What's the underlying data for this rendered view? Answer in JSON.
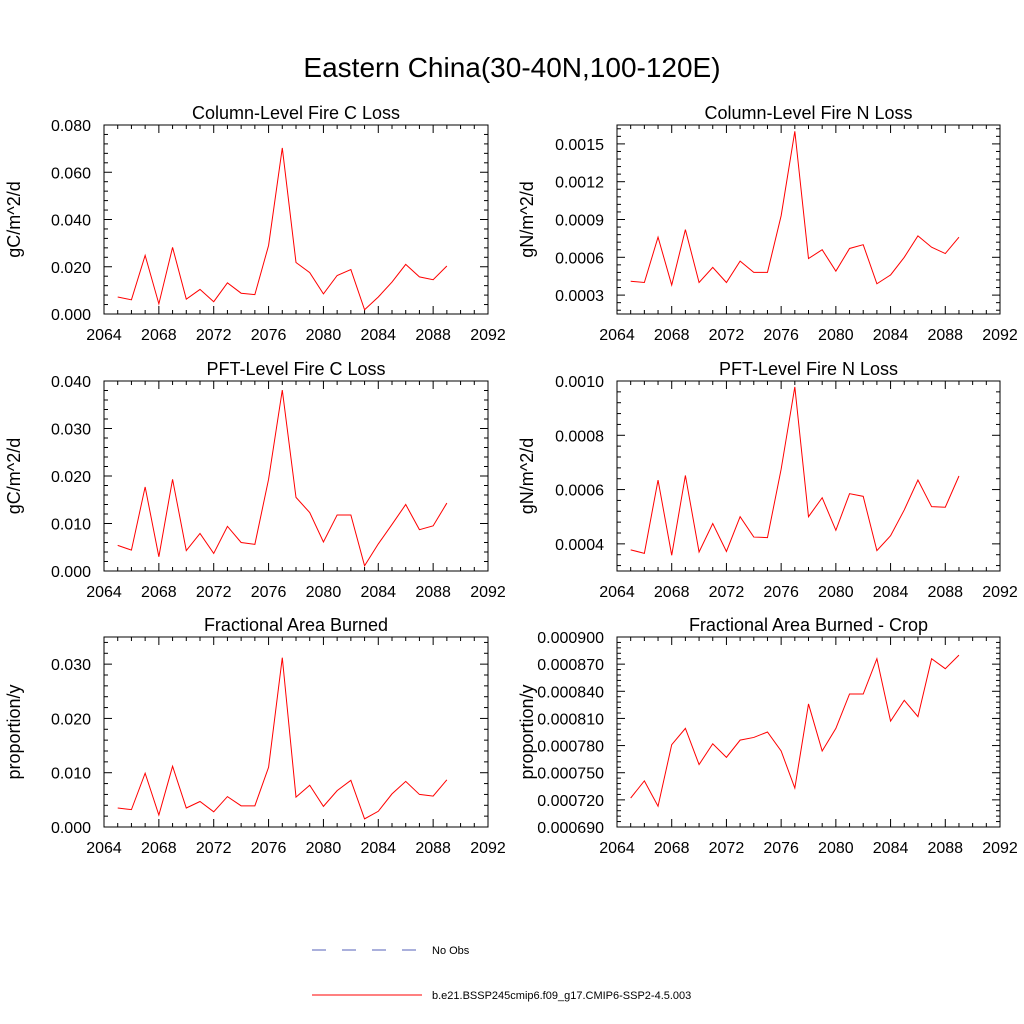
{
  "figure": {
    "title": "Eastern China(30-40N,100-120E)"
  },
  "legend": [
    {
      "name": "No Obs",
      "color": "#5560b8",
      "style": "dashed"
    },
    {
      "name": "b.e21.BSSP245cmip6.f09_g17.CMIP6-SSP2-4.5.003",
      "color": "#ff0000",
      "style": "solid"
    }
  ],
  "chart_data": [
    {
      "type": "line",
      "title": "Column-Level Fire C Loss",
      "ylabel": "gC/m^2/d",
      "xlim": [
        2064,
        2092
      ],
      "xticks": [
        2064,
        2068,
        2072,
        2076,
        2080,
        2084,
        2088,
        2092
      ],
      "xtick_labels": [
        "2064",
        "2068",
        "2072",
        "2076",
        "2080",
        "2084",
        "2088",
        "2092"
      ],
      "ylim": [
        0.0,
        0.08
      ],
      "yticks": [
        0.0,
        0.02,
        0.04,
        0.06,
        0.08
      ],
      "ytick_labels": [
        "0.000",
        "0.020",
        "0.040",
        "0.060",
        "0.080"
      ],
      "x": [
        2065,
        2066,
        2067,
        2068,
        2069,
        2070,
        2071,
        2072,
        2073,
        2074,
        2075,
        2076,
        2077,
        2078,
        2079,
        2080,
        2081,
        2082,
        2083,
        2084,
        2085,
        2086,
        2087,
        2088,
        2089
      ],
      "series": [
        {
          "color": "#ff0000",
          "values": [
            0.0072,
            0.006,
            0.0248,
            0.0043,
            0.0282,
            0.0063,
            0.0104,
            0.0052,
            0.0132,
            0.0088,
            0.0082,
            0.029,
            0.0703,
            0.0218,
            0.0175,
            0.0085,
            0.0163,
            0.0188,
            0.0018,
            0.0072,
            0.0135,
            0.021,
            0.0157,
            0.0145,
            0.0203
          ]
        }
      ]
    },
    {
      "type": "line",
      "title": "Column-Level Fire N Loss",
      "ylabel": "gN/m^2/d",
      "xlim": [
        2064,
        2092
      ],
      "xticks": [
        2064,
        2068,
        2072,
        2076,
        2080,
        2084,
        2088,
        2092
      ],
      "xtick_labels": [
        "2064",
        "2068",
        "2072",
        "2076",
        "2080",
        "2084",
        "2088",
        "2092"
      ],
      "ylim": [
        0.00015,
        0.00165
      ],
      "yticks": [
        0.0003,
        0.0006,
        0.0009,
        0.0012,
        0.0015
      ],
      "ytick_labels": [
        "0.0003",
        "0.0006",
        "0.0009",
        "0.0012",
        "0.0015"
      ],
      "x": [
        2065,
        2066,
        2067,
        2068,
        2069,
        2070,
        2071,
        2072,
        2073,
        2074,
        2075,
        2076,
        2077,
        2078,
        2079,
        2080,
        2081,
        2082,
        2083,
        2084,
        2085,
        2086,
        2087,
        2088,
        2089
      ],
      "series": [
        {
          "color": "#ff0000",
          "values": [
            0.00041,
            0.0004,
            0.00076,
            0.00038,
            0.00082,
            0.0004,
            0.00052,
            0.0004,
            0.00057,
            0.00048,
            0.00048,
            0.00093,
            0.0016,
            0.00059,
            0.00066,
            0.00049,
            0.00067,
            0.0007,
            0.00039,
            0.00046,
            0.0006,
            0.00077,
            0.00068,
            0.00063,
            0.00076
          ]
        }
      ]
    },
    {
      "type": "line",
      "title": "PFT-Level Fire C Loss",
      "ylabel": "gC/m^2/d",
      "xlim": [
        2064,
        2092
      ],
      "xticks": [
        2064,
        2068,
        2072,
        2076,
        2080,
        2084,
        2088,
        2092
      ],
      "xtick_labels": [
        "2064",
        "2068",
        "2072",
        "2076",
        "2080",
        "2084",
        "2088",
        "2092"
      ],
      "ylim": [
        0.0,
        0.04
      ],
      "yticks": [
        0.0,
        0.01,
        0.02,
        0.03,
        0.04
      ],
      "ytick_labels": [
        "0.000",
        "0.010",
        "0.020",
        "0.030",
        "0.040"
      ],
      "x": [
        2065,
        2066,
        2067,
        2068,
        2069,
        2070,
        2071,
        2072,
        2073,
        2074,
        2075,
        2076,
        2077,
        2078,
        2079,
        2080,
        2081,
        2082,
        2083,
        2084,
        2085,
        2086,
        2087,
        2088,
        2089
      ],
      "series": [
        {
          "color": "#ff0000",
          "values": [
            0.0054,
            0.0044,
            0.0177,
            0.003,
            0.0193,
            0.0043,
            0.0079,
            0.0037,
            0.0094,
            0.006,
            0.0056,
            0.0193,
            0.0381,
            0.0155,
            0.0123,
            0.0061,
            0.0118,
            0.0118,
            0.0011,
            0.0057,
            0.0098,
            0.014,
            0.0087,
            0.0095,
            0.0143
          ]
        }
      ]
    },
    {
      "type": "line",
      "title": "PFT-Level Fire N Loss",
      "ylabel": "gN/m^2/d",
      "xlim": [
        2064,
        2092
      ],
      "xticks": [
        2064,
        2068,
        2072,
        2076,
        2080,
        2084,
        2088,
        2092
      ],
      "xtick_labels": [
        "2064",
        "2068",
        "2072",
        "2076",
        "2080",
        "2084",
        "2088",
        "2092"
      ],
      "ylim": [
        0.0003,
        0.001
      ],
      "yticks": [
        0.0004,
        0.0006,
        0.0008,
        0.001
      ],
      "ytick_labels": [
        "0.0004",
        "0.0006",
        "0.0008",
        "0.0010"
      ],
      "x": [
        2065,
        2066,
        2067,
        2068,
        2069,
        2070,
        2071,
        2072,
        2073,
        2074,
        2075,
        2076,
        2077,
        2078,
        2079,
        2080,
        2081,
        2082,
        2083,
        2084,
        2085,
        2086,
        2087,
        2088,
        2089
      ],
      "series": [
        {
          "color": "#ff0000",
          "values": [
            0.000378,
            0.000365,
            0.000635,
            0.000358,
            0.000652,
            0.00037,
            0.000475,
            0.000372,
            0.0005,
            0.000425,
            0.000423,
            0.000675,
            0.000978,
            0.0005,
            0.00057,
            0.00045,
            0.000585,
            0.000575,
            0.000375,
            0.00043,
            0.000525,
            0.000635,
            0.000537,
            0.000535,
            0.00065
          ]
        }
      ]
    },
    {
      "type": "line",
      "title": "Fractional Area Burned",
      "ylabel": "proportion/y",
      "xlim": [
        2064,
        2092
      ],
      "xticks": [
        2064,
        2068,
        2072,
        2076,
        2080,
        2084,
        2088,
        2092
      ],
      "xtick_labels": [
        "2064",
        "2068",
        "2072",
        "2076",
        "2080",
        "2084",
        "2088",
        "2092"
      ],
      "ylim": [
        0.0,
        0.035
      ],
      "yticks": [
        0.0,
        0.01,
        0.02,
        0.03
      ],
      "ytick_labels": [
        "0.000",
        "0.010",
        "0.020",
        "0.030"
      ],
      "x": [
        2065,
        2066,
        2067,
        2068,
        2069,
        2070,
        2071,
        2072,
        2073,
        2074,
        2075,
        2076,
        2077,
        2078,
        2079,
        2080,
        2081,
        2082,
        2083,
        2084,
        2085,
        2086,
        2087,
        2088,
        2089
      ],
      "series": [
        {
          "color": "#ff0000",
          "values": [
            0.0035,
            0.0032,
            0.0099,
            0.0022,
            0.0112,
            0.0035,
            0.0047,
            0.0028,
            0.0056,
            0.0039,
            0.0039,
            0.011,
            0.0312,
            0.0055,
            0.0077,
            0.0038,
            0.0067,
            0.0086,
            0.0015,
            0.0029,
            0.0061,
            0.0084,
            0.006,
            0.0057,
            0.0087
          ]
        }
      ]
    },
    {
      "type": "line",
      "title": "Fractional Area Burned - Crop",
      "ylabel": "proportion/y",
      "xlim": [
        2064,
        2092
      ],
      "xticks": [
        2064,
        2068,
        2072,
        2076,
        2080,
        2084,
        2088,
        2092
      ],
      "xtick_labels": [
        "2064",
        "2068",
        "2072",
        "2076",
        "2080",
        "2084",
        "2088",
        "2092"
      ],
      "ylim": [
        0.00069,
        0.0009
      ],
      "yticks": [
        0.00069,
        0.00072,
        0.00075,
        0.00078,
        0.00081,
        0.00084,
        0.00087,
        0.0009
      ],
      "ytick_labels": [
        "0.000690",
        "0.000720",
        "0.000750",
        "0.000780",
        "0.000810",
        "0.000840",
        "0.000870",
        "0.000900"
      ],
      "x": [
        2065,
        2066,
        2067,
        2068,
        2069,
        2070,
        2071,
        2072,
        2073,
        2074,
        2075,
        2076,
        2077,
        2078,
        2079,
        2080,
        2081,
        2082,
        2083,
        2084,
        2085,
        2086,
        2087,
        2088,
        2089
      ],
      "series": [
        {
          "color": "#ff0000",
          "values": [
            0.000722,
            0.000741,
            0.000713,
            0.000781,
            0.000799,
            0.000759,
            0.000782,
            0.000767,
            0.000786,
            0.000789,
            0.000795,
            0.000774,
            0.000733,
            0.000826,
            0.000774,
            0.000799,
            0.000837,
            0.000837,
            0.000876,
            0.000807,
            0.00083,
            0.000812,
            0.000876,
            0.000865,
            0.00088
          ]
        }
      ]
    }
  ]
}
